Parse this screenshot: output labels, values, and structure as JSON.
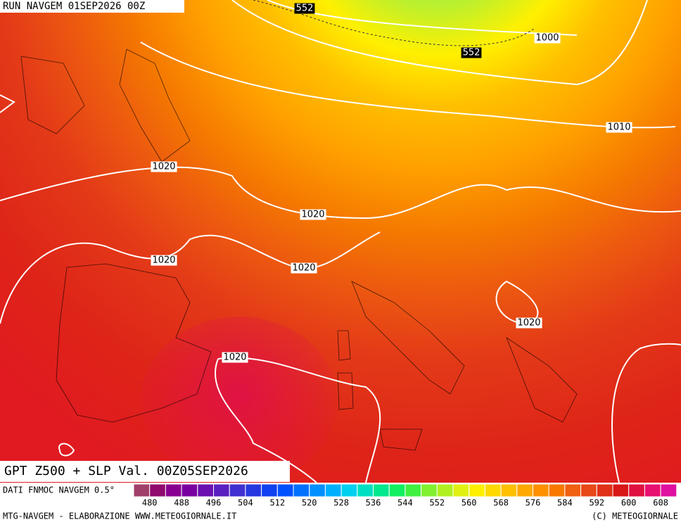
{
  "header": {
    "run": "RUN NAVGEM 01SEP2026 00Z"
  },
  "contour_labels": [
    552,
    552,
    1000,
    1010,
    1020,
    1020,
    1020,
    1020,
    1020,
    1020
  ],
  "title": "GPT Z500 + SLP Val. 00Z05SEP2026",
  "legend": {
    "source": "DATI FNMOC NAVGEM 0.5°",
    "colors": [
      "#a0406a",
      "#900a6e",
      "#880090",
      "#7800a0",
      "#6a10b0",
      "#5a20c0",
      "#4030d0",
      "#2838e0",
      "#1040f0",
      "#0050ff",
      "#0070ff",
      "#0090ff",
      "#00b0ff",
      "#00d0f0",
      "#00e0c0",
      "#00e890",
      "#10f060",
      "#40f040",
      "#80f030",
      "#b0f020",
      "#e0f010",
      "#fff000",
      "#ffd800",
      "#ffc000",
      "#ffa800",
      "#ff9000",
      "#f87800",
      "#f06010",
      "#e84818",
      "#e03018",
      "#d81818",
      "#e01040",
      "#e81070",
      "#e010a0"
    ],
    "labels": [
      480,
      488,
      496,
      504,
      512,
      520,
      528,
      536,
      544,
      552,
      560,
      568,
      576,
      584,
      592,
      600,
      608
    ]
  },
  "footer": {
    "left": "MTG-NAVGEM - ELABORAZIONE WWW.METEOGIORNALE.IT",
    "right": "(C) METEOGIORNALE"
  }
}
